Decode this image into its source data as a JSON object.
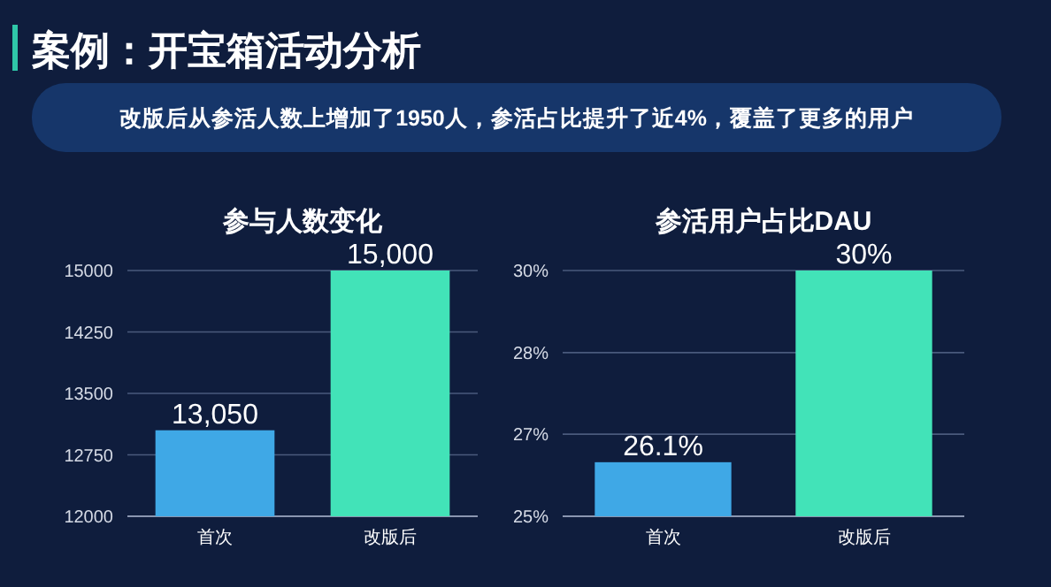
{
  "chart_data": [
    {
      "type": "other",
      "title": "案例：开宝箱活动分析",
      "subtitle": "改版后从参活人数上增加了1950人，参活占比提升了近4%，覆盖了更多的用户"
    },
    {
      "type": "bar",
      "title": "参与人数变化",
      "categories": [
        "首次",
        "改版后"
      ],
      "values": [
        13050,
        15000
      ],
      "value_labels": [
        "13,050",
        "15,000"
      ],
      "colors": [
        "#3fa8e6",
        "#42e3b8"
      ],
      "ylim": [
        12000,
        15000
      ],
      "yticks": [
        12000,
        12750,
        13500,
        14250,
        15000
      ],
      "grid": "y"
    },
    {
      "type": "bar",
      "title": "参活用户占比DAU",
      "categories": [
        "首次",
        "改版后"
      ],
      "values": [
        26.1,
        30
      ],
      "value_labels": [
        "26.1%",
        "30%"
      ],
      "colors": [
        "#3fa8e6",
        "#42e3b8"
      ],
      "ylim": [
        25,
        30
      ],
      "yticks": [
        {
          "value": 25,
          "label": "25%"
        },
        {
          "value": 26.67,
          "label": "27%"
        },
        {
          "value": 28.33,
          "label": "28%"
        },
        {
          "value": 30,
          "label": "30%"
        }
      ],
      "grid": "y"
    }
  ]
}
